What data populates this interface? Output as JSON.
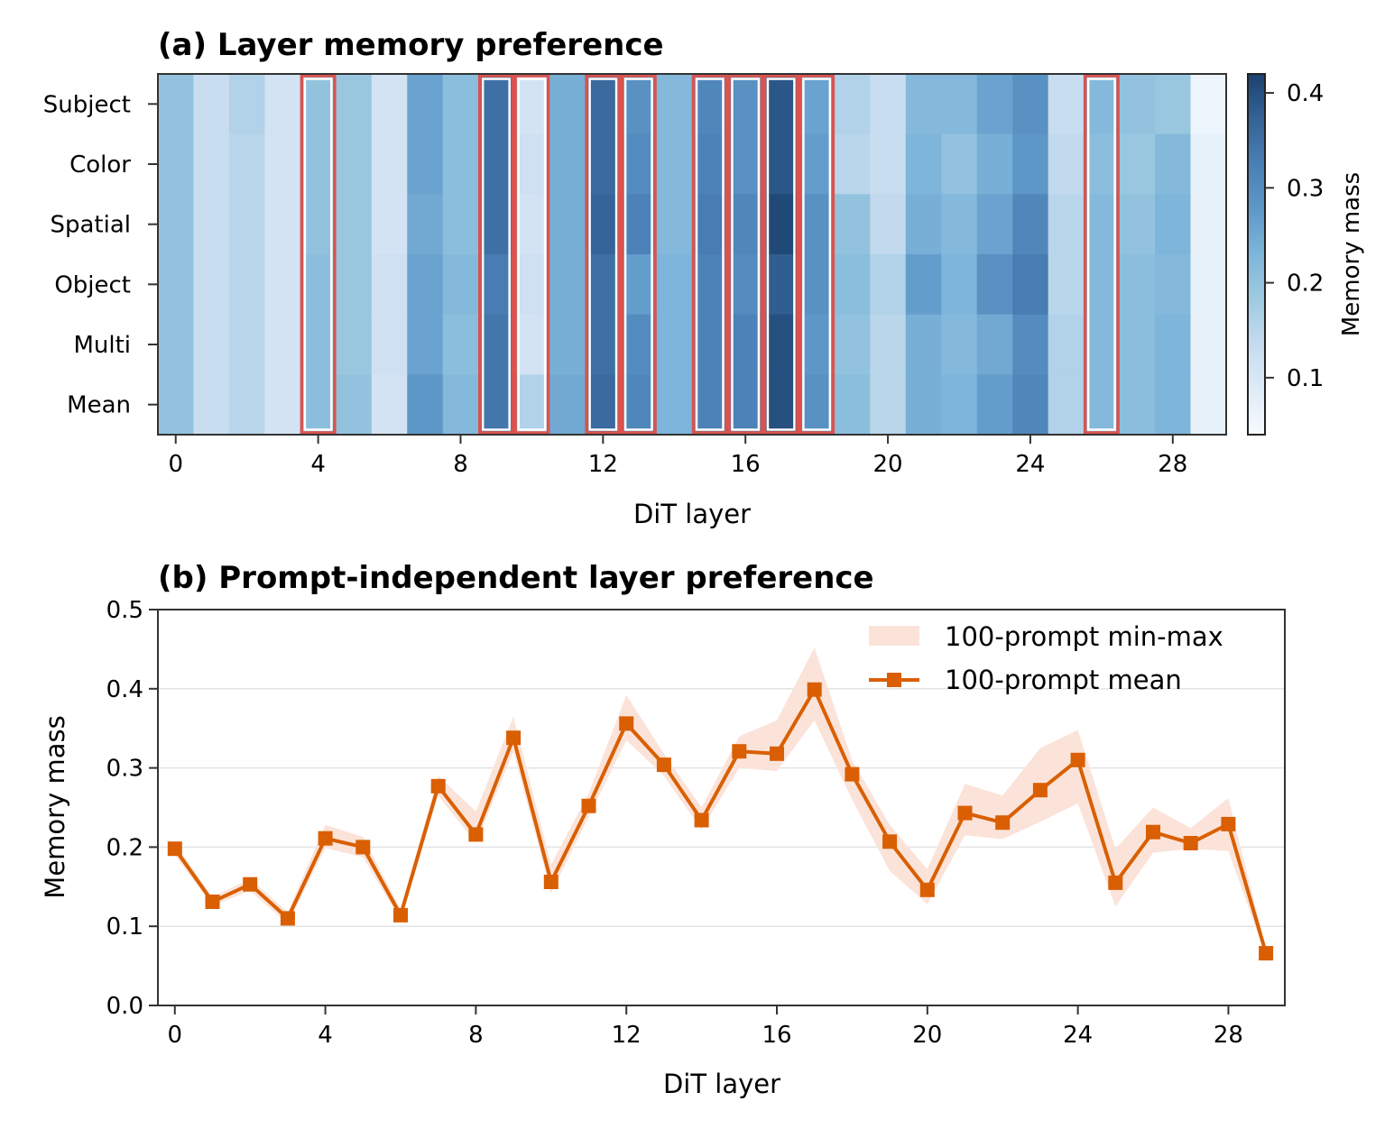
{
  "chart_data": [
    {
      "type": "heatmap",
      "title": "(a) Layer memory preference",
      "xlabel": "DiT layer",
      "rows": [
        "Subject",
        "Color",
        "Spatial",
        "Object",
        "Multi",
        "Mean"
      ],
      "x": [
        0,
        1,
        2,
        3,
        4,
        5,
        6,
        7,
        8,
        9,
        10,
        11,
        12,
        13,
        14,
        15,
        16,
        17,
        18,
        19,
        20,
        21,
        22,
        23,
        24,
        25,
        26,
        27,
        28,
        29
      ],
      "x_ticks": [
        0,
        4,
        8,
        12,
        16,
        20,
        24,
        28
      ],
      "values": [
        [
          0.2,
          0.13,
          0.16,
          0.11,
          0.2,
          0.19,
          0.11,
          0.26,
          0.21,
          0.35,
          0.11,
          0.24,
          0.36,
          0.29,
          0.22,
          0.31,
          0.29,
          0.39,
          0.26,
          0.16,
          0.13,
          0.22,
          0.22,
          0.26,
          0.29,
          0.13,
          0.22,
          0.2,
          0.19,
          0.06
        ],
        [
          0.2,
          0.13,
          0.15,
          0.11,
          0.2,
          0.19,
          0.11,
          0.26,
          0.21,
          0.35,
          0.12,
          0.24,
          0.36,
          0.3,
          0.22,
          0.32,
          0.29,
          0.39,
          0.27,
          0.15,
          0.13,
          0.23,
          0.2,
          0.24,
          0.28,
          0.14,
          0.21,
          0.19,
          0.22,
          0.07
        ],
        [
          0.2,
          0.13,
          0.15,
          0.11,
          0.2,
          0.19,
          0.11,
          0.25,
          0.21,
          0.35,
          0.11,
          0.24,
          0.37,
          0.32,
          0.22,
          0.33,
          0.31,
          0.41,
          0.29,
          0.2,
          0.14,
          0.24,
          0.22,
          0.26,
          0.31,
          0.15,
          0.22,
          0.2,
          0.23,
          0.07
        ],
        [
          0.2,
          0.13,
          0.15,
          0.11,
          0.21,
          0.19,
          0.12,
          0.26,
          0.22,
          0.33,
          0.12,
          0.24,
          0.35,
          0.27,
          0.23,
          0.32,
          0.3,
          0.38,
          0.29,
          0.21,
          0.16,
          0.27,
          0.23,
          0.29,
          0.33,
          0.15,
          0.22,
          0.21,
          0.22,
          0.07
        ],
        [
          0.2,
          0.13,
          0.15,
          0.11,
          0.21,
          0.19,
          0.12,
          0.26,
          0.21,
          0.34,
          0.11,
          0.24,
          0.35,
          0.3,
          0.23,
          0.32,
          0.32,
          0.4,
          0.28,
          0.2,
          0.15,
          0.24,
          0.22,
          0.25,
          0.3,
          0.16,
          0.22,
          0.21,
          0.23,
          0.07
        ],
        [
          0.2,
          0.13,
          0.15,
          0.11,
          0.21,
          0.2,
          0.11,
          0.28,
          0.22,
          0.34,
          0.16,
          0.25,
          0.36,
          0.31,
          0.23,
          0.32,
          0.32,
          0.4,
          0.29,
          0.21,
          0.15,
          0.24,
          0.23,
          0.27,
          0.31,
          0.16,
          0.22,
          0.21,
          0.23,
          0.07
        ]
      ],
      "highlighted_layers": [
        4,
        9,
        10,
        12,
        13,
        15,
        16,
        17,
        18,
        26
      ],
      "highlight_color": "#d9534f",
      "colorbar": {
        "label": "Memory mass",
        "ticks": [
          0.1,
          0.2,
          0.3,
          0.4
        ],
        "range": [
          0.04,
          0.42
        ],
        "colormap": "Blues"
      }
    },
    {
      "type": "line",
      "title": "(b) Prompt-independent layer preference",
      "xlabel": "DiT layer",
      "ylabel": "Memory mass",
      "x": [
        0,
        1,
        2,
        3,
        4,
        5,
        6,
        7,
        8,
        9,
        10,
        11,
        12,
        13,
        14,
        15,
        16,
        17,
        18,
        19,
        20,
        21,
        22,
        23,
        24,
        25,
        26,
        27,
        28,
        29
      ],
      "x_ticks": [
        0,
        4,
        8,
        12,
        16,
        20,
        24,
        28
      ],
      "y_ticks": [
        0.0,
        0.1,
        0.2,
        0.3,
        0.4,
        0.5
      ],
      "ylim": [
        0.0,
        0.5
      ],
      "xlim": [
        -0.45,
        29.5
      ],
      "grid": "horizontal",
      "legend_position": "top-right",
      "series": [
        {
          "name": "100-prompt mean",
          "color": "#d95f02",
          "marker": "square",
          "values": [
            0.198,
            0.131,
            0.153,
            0.11,
            0.211,
            0.2,
            0.114,
            0.277,
            0.216,
            0.338,
            0.156,
            0.252,
            0.356,
            0.304,
            0.234,
            0.321,
            0.318,
            0.399,
            0.292,
            0.207,
            0.146,
            0.243,
            0.231,
            0.272,
            0.31,
            0.155,
            0.219,
            0.205,
            0.229,
            0.066
          ]
        }
      ],
      "band": {
        "name": "100-prompt min-max",
        "color": "#fbe3d9",
        "min": [
          0.19,
          0.126,
          0.145,
          0.103,
          0.199,
          0.187,
          0.108,
          0.265,
          0.205,
          0.32,
          0.142,
          0.238,
          0.335,
          0.29,
          0.222,
          0.3,
          0.296,
          0.36,
          0.26,
          0.17,
          0.128,
          0.215,
          0.21,
          0.232,
          0.255,
          0.125,
          0.193,
          0.198,
          0.195,
          0.062
        ],
        "max": [
          0.205,
          0.137,
          0.16,
          0.118,
          0.228,
          0.213,
          0.122,
          0.29,
          0.245,
          0.365,
          0.178,
          0.268,
          0.392,
          0.318,
          0.25,
          0.34,
          0.36,
          0.452,
          0.31,
          0.228,
          0.172,
          0.28,
          0.265,
          0.325,
          0.348,
          0.198,
          0.25,
          0.224,
          0.262,
          0.072
        ]
      }
    }
  ]
}
